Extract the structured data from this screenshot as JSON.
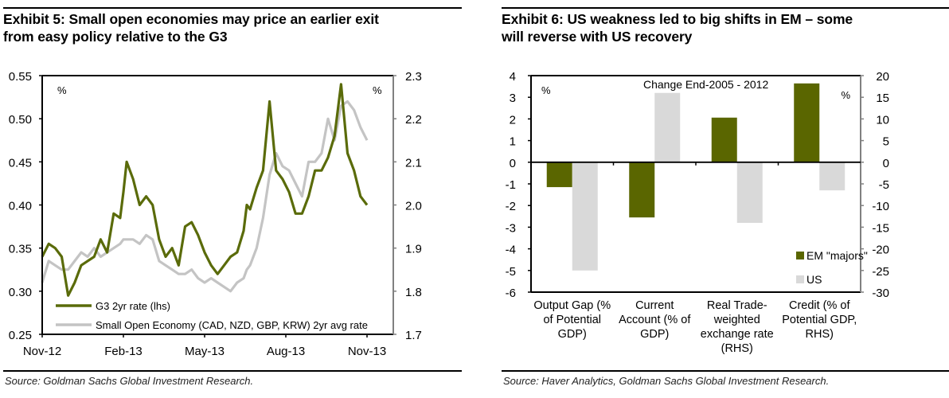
{
  "exhibit5": {
    "title_line1": "Exhibit 5: Small open economies may price an earlier exit",
    "title_line2": "from easy policy relative to the G3",
    "source": "Source: Goldman Sachs Global Investment Research."
  },
  "exhibit6": {
    "title_line1": "Exhibit 6: US weakness led to big shifts in EM – some",
    "title_line2": "will reverse with US recovery",
    "source": "Source: Haver Analytics, Goldman Sachs Global Investment Research."
  },
  "chart_data": [
    {
      "type": "line",
      "title": "Exhibit 5: Small open economies may price an earlier exit from easy policy relative to the G3",
      "ylabel_left": "%",
      "ylabel_right": "%",
      "x_ticks": [
        "Nov-12",
        "Feb-13",
        "May-13",
        "Aug-13",
        "Nov-13"
      ],
      "y_left": {
        "range": [
          0.25,
          0.55
        ],
        "ticks": [
          "0.25",
          "0.30",
          "0.35",
          "0.40",
          "0.45",
          "0.50",
          "0.55"
        ]
      },
      "y_right": {
        "range": [
          1.7,
          2.3
        ],
        "ticks": [
          "1.7",
          "1.8",
          "1.9",
          "2.0",
          "2.1",
          "2.2",
          "2.3"
        ]
      },
      "grid": false,
      "legend_position": "bottom-left",
      "series": [
        {
          "name": "G3 2yr rate (lhs)",
          "axis": "left",
          "color": "#5a6b0a",
          "x_frac": [
            0.0,
            0.02,
            0.04,
            0.06,
            0.08,
            0.1,
            0.12,
            0.14,
            0.16,
            0.18,
            0.2,
            0.22,
            0.24,
            0.25,
            0.26,
            0.28,
            0.3,
            0.32,
            0.34,
            0.36,
            0.38,
            0.4,
            0.42,
            0.44,
            0.46,
            0.48,
            0.5,
            0.52,
            0.54,
            0.56,
            0.58,
            0.6,
            0.62,
            0.63,
            0.64,
            0.66,
            0.68,
            0.7,
            0.72,
            0.74,
            0.76,
            0.78,
            0.8,
            0.81,
            0.82,
            0.84,
            0.86,
            0.88,
            0.9,
            0.92,
            0.94,
            0.96,
            0.98,
            1.0
          ],
          "values": [
            0.34,
            0.355,
            0.35,
            0.34,
            0.295,
            0.31,
            0.33,
            0.335,
            0.34,
            0.36,
            0.345,
            0.39,
            0.385,
            0.415,
            0.45,
            0.43,
            0.4,
            0.41,
            0.4,
            0.36,
            0.34,
            0.35,
            0.33,
            0.375,
            0.38,
            0.365,
            0.345,
            0.33,
            0.32,
            0.33,
            0.34,
            0.345,
            0.37,
            0.4,
            0.395,
            0.42,
            0.44,
            0.52,
            0.44,
            0.43,
            0.415,
            0.39,
            0.39,
            0.4,
            0.41,
            0.44,
            0.44,
            0.455,
            0.48,
            0.54,
            0.46,
            0.44,
            0.41,
            0.4
          ]
        },
        {
          "name": "Small Open Economy (CAD, NZD, GBP, KRW) 2yr avg rate",
          "axis": "right",
          "color": "#c4c4c4",
          "x_frac": [
            0.0,
            0.02,
            0.04,
            0.06,
            0.08,
            0.1,
            0.12,
            0.14,
            0.16,
            0.18,
            0.2,
            0.22,
            0.24,
            0.25,
            0.26,
            0.28,
            0.3,
            0.32,
            0.34,
            0.36,
            0.38,
            0.4,
            0.42,
            0.44,
            0.46,
            0.48,
            0.5,
            0.52,
            0.54,
            0.56,
            0.58,
            0.6,
            0.62,
            0.63,
            0.64,
            0.66,
            0.68,
            0.7,
            0.72,
            0.74,
            0.76,
            0.78,
            0.8,
            0.81,
            0.82,
            0.84,
            0.86,
            0.88,
            0.9,
            0.92,
            0.94,
            0.96,
            0.98,
            1.0
          ],
          "values": [
            1.82,
            1.87,
            1.86,
            1.85,
            1.85,
            1.87,
            1.89,
            1.88,
            1.9,
            1.88,
            1.89,
            1.9,
            1.91,
            1.92,
            1.92,
            1.92,
            1.91,
            1.93,
            1.92,
            1.87,
            1.86,
            1.85,
            1.84,
            1.84,
            1.85,
            1.83,
            1.82,
            1.83,
            1.82,
            1.81,
            1.8,
            1.82,
            1.83,
            1.85,
            1.86,
            1.9,
            1.97,
            2.07,
            2.12,
            2.09,
            2.08,
            2.05,
            2.02,
            2.06,
            2.1,
            2.1,
            2.12,
            2.2,
            2.15,
            2.23,
            2.24,
            2.22,
            2.18,
            2.15
          ]
        }
      ]
    },
    {
      "type": "bar",
      "title": "Exhibit 6: US weakness led to big shifts in EM – some will reverse with US recovery",
      "annotation": "Change End-2005 - 2012",
      "ylabel_left": "%",
      "ylabel_right": "%",
      "categories": [
        "Output Gap (% of Potential GDP)",
        "Current Account (% of GDP)",
        "Real Trade-weighted exchange rate (RHS)",
        "Credit (% of Potential GDP, RHS)"
      ],
      "category_label_lines": [
        [
          "Output Gap (%",
          "of Potential",
          "GDP)"
        ],
        [
          "Current",
          "Account (% of",
          "GDP)"
        ],
        [
          "Real Trade-",
          "weighted",
          "exchange rate",
          "(RHS)"
        ],
        [
          "Credit (% of",
          "Potential GDP,",
          "RHS)"
        ]
      ],
      "category_axis": [
        "left",
        "left",
        "right",
        "right"
      ],
      "y_left": {
        "range": [
          -6,
          4
        ],
        "ticks": [
          "-6",
          "-5",
          "-4",
          "-3",
          "-2",
          "-1",
          "0",
          "1",
          "2",
          "3",
          "4"
        ]
      },
      "y_right": {
        "range": [
          -30,
          20
        ],
        "ticks": [
          "-30",
          "-25",
          "-20",
          "-15",
          "-10",
          "-5",
          "0",
          "5",
          "10",
          "15",
          "20"
        ]
      },
      "grid": false,
      "legend_position": "bottom-right",
      "series": [
        {
          "name": "EM \"majors\"",
          "color": "#5a6600",
          "values": [
            -1.15,
            -2.55,
            10.3,
            18.2
          ]
        },
        {
          "name": "US",
          "color": "#d9d9d9",
          "values": [
            -5.0,
            3.2,
            -14.0,
            -6.5
          ]
        }
      ]
    }
  ]
}
